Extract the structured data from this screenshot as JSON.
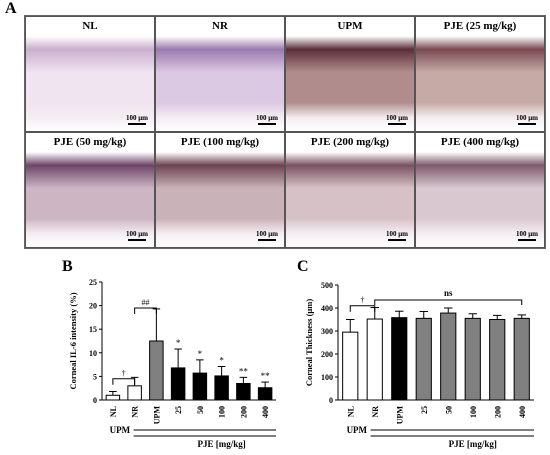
{
  "panel_a": {
    "letter": "A",
    "tiles": [
      {
        "title": "NL",
        "tone": "#efe4f0",
        "band": "#caaecd",
        "scale": "100 μm"
      },
      {
        "title": "NR",
        "tone": "#dbc8e3",
        "band": "#9a7aae",
        "scale": "100 μm"
      },
      {
        "title": "UPM",
        "tone": "#b08c8c",
        "band": "#5a2e3a",
        "scale": "100 μm"
      },
      {
        "title": "PJE (25 mg/kg)",
        "tone": "#c6aaa6",
        "band": "#7a4a52",
        "scale": "100 μm"
      },
      {
        "title": "PJE (50 mg/kg)",
        "tone": "#cdb5c4",
        "band": "#6e4468",
        "scale": "100 μm"
      },
      {
        "title": "PJE (100 mg/kg)",
        "tone": "#c9b2b8",
        "band": "#6e4252",
        "scale": "100 μm"
      },
      {
        "title": "PJE (200 mg/kg)",
        "tone": "#d6c2c6",
        "band": "#7a5060",
        "scale": "100 μm"
      },
      {
        "title": "PJE (400 mg/kg)",
        "tone": "#d9c8d0",
        "band": "#7e5a6e",
        "scale": "100 μm"
      }
    ]
  },
  "chart_data": [
    {
      "panel": "B",
      "type": "bar",
      "ylabel": "Corneal IL-6 intensity (%)",
      "ylim": [
        0,
        25
      ],
      "yticks": [
        0,
        5,
        10,
        15,
        20,
        25
      ],
      "categories": [
        "NL",
        "NR",
        "UPM",
        "25",
        "50",
        "100",
        "200",
        "400"
      ],
      "values": [
        1.0,
        3.0,
        12.5,
        6.8,
        5.7,
        5.1,
        3.5,
        2.6
      ],
      "errors": [
        0.8,
        1.8,
        6.8,
        4.0,
        2.8,
        2.0,
        1.3,
        1.2
      ],
      "fills": [
        "#ffffff",
        "#ffffff",
        "#808080",
        "#000000",
        "#000000",
        "#000000",
        "#000000",
        "#000000"
      ],
      "annotations": [
        "",
        "",
        "",
        "*",
        "*",
        "*",
        "**",
        "**"
      ],
      "brackets": [
        {
          "from": 0,
          "to": 1,
          "label": "†",
          "y": 4.5
        },
        {
          "from": 1,
          "to": 2,
          "label": "##",
          "y": 19.5
        }
      ],
      "group_labels": {
        "upm": "UPM",
        "pje": "PJE [mg/kg]"
      }
    },
    {
      "panel": "C",
      "type": "bar",
      "ylabel": "Corneal Thickness (μm)",
      "ylim": [
        0,
        500
      ],
      "yticks": [
        0,
        100,
        200,
        300,
        400,
        500
      ],
      "categories": [
        "NL",
        "NR",
        "UPM",
        "25",
        "50",
        "100",
        "200",
        "400"
      ],
      "values": [
        295,
        352,
        358,
        355,
        378,
        355,
        350,
        355
      ],
      "errors": [
        55,
        50,
        28,
        30,
        22,
        20,
        18,
        15
      ],
      "fills": [
        "#ffffff",
        "#ffffff",
        "#000000",
        "#808080",
        "#808080",
        "#808080",
        "#808080",
        "#808080"
      ],
      "annotations": [
        "",
        "",
        "",
        "",
        "",
        "",
        "",
        ""
      ],
      "brackets": [
        {
          "from": 0,
          "to": 1,
          "label": "†",
          "y": 410
        }
      ],
      "ns_bracket": {
        "from": 1,
        "to": 7,
        "label": "ns",
        "y": 435
      },
      "group_labels": {
        "upm": "UPM",
        "pje": "PJE [mg/kg]"
      }
    }
  ]
}
